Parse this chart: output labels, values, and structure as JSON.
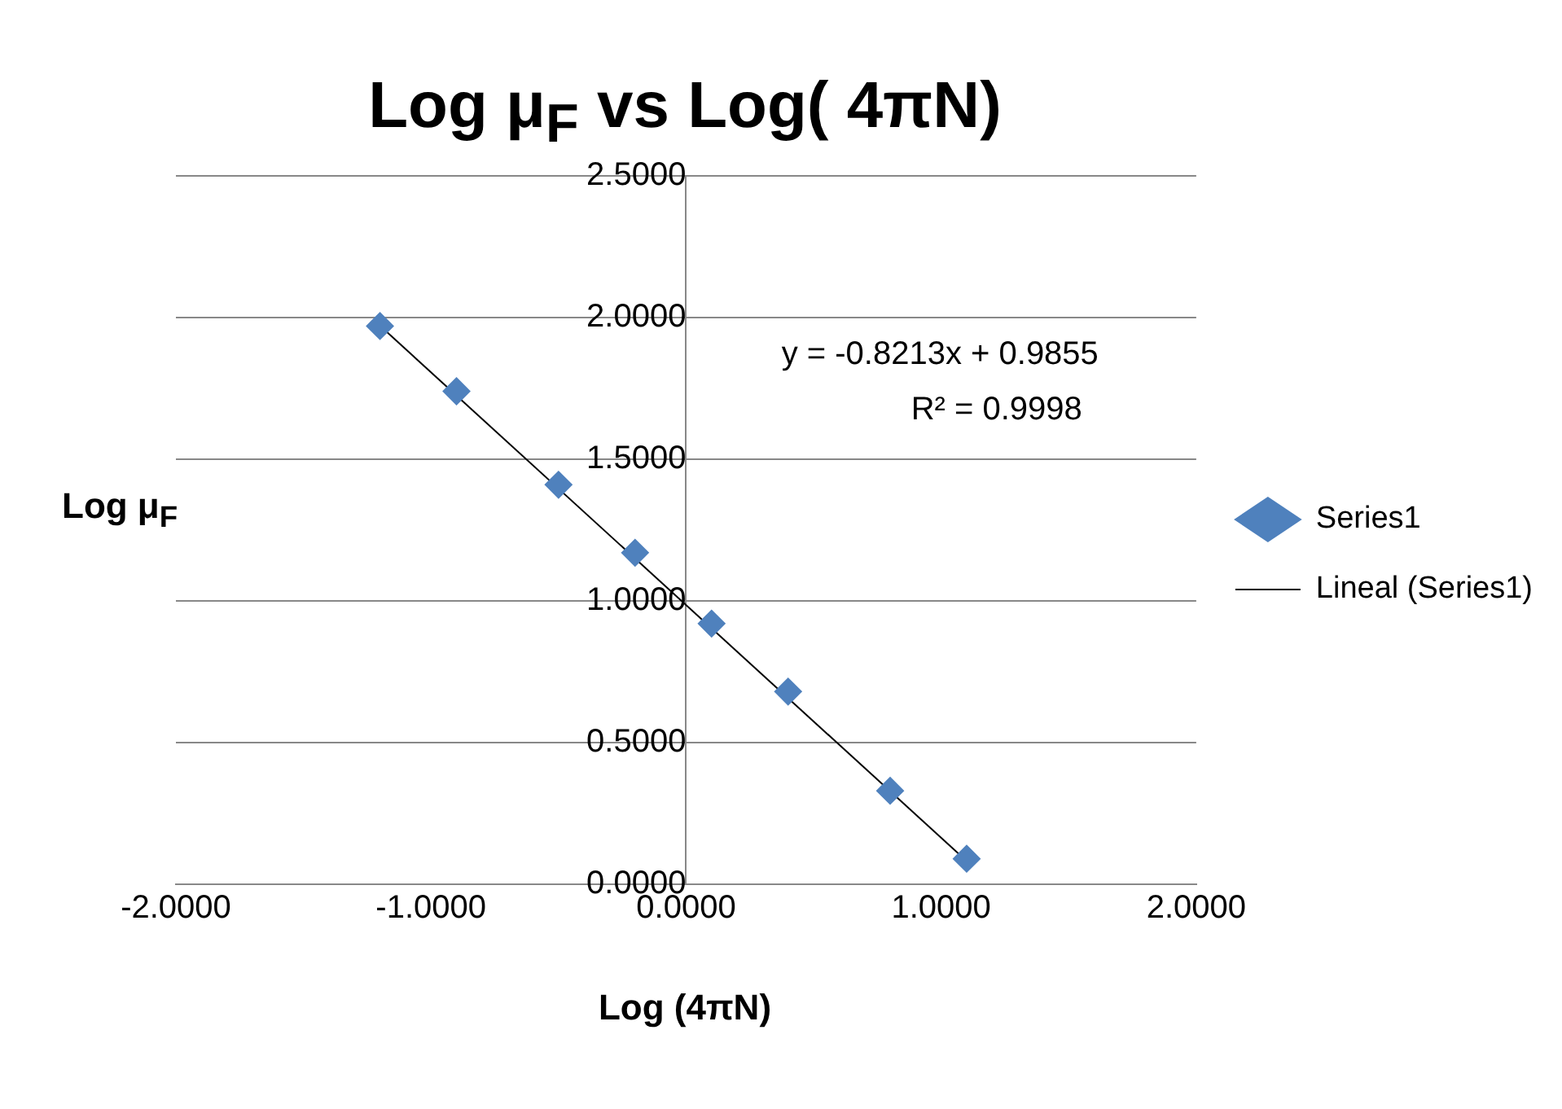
{
  "chart_data": {
    "type": "scatter",
    "title": "Log μ$_{F}$ vs Log( 4πN)",
    "xlabel": "Log (4πN)",
    "ylabel": "Log μ$_{F}$",
    "x": [
      -1.2,
      -0.9,
      -0.5,
      -0.2,
      0.1,
      0.4,
      0.8,
      1.1
    ],
    "series": [
      {
        "name": "Series1",
        "color": "#4f81bd",
        "type": "scatter",
        "marker": "diamond",
        "values": [
          1.97,
          1.74,
          1.41,
          1.17,
          0.92,
          0.68,
          0.33,
          0.09
        ]
      },
      {
        "name": "Lineal (Series1)",
        "color": "#000000",
        "type": "line",
        "marker": "none",
        "line_style": "solid",
        "x": [
          -1.2,
          1.1
        ],
        "values": [
          1.971,
          0.082
        ]
      }
    ],
    "annotations": [
      "y = -0.8213x + 0.9855",
      "R² = 0.9998"
    ],
    "xlim": [
      -2,
      2
    ],
    "xticks": [
      {
        "value": -2,
        "label": "-2.0000"
      },
      {
        "value": -1,
        "label": "-1.0000"
      },
      {
        "value": 0,
        "label": "0.0000"
      },
      {
        "value": 1,
        "label": "1.0000"
      },
      {
        "value": 2,
        "label": "2.0000"
      }
    ],
    "ylim": [
      0,
      2.5
    ],
    "yticks": [
      {
        "value": 0,
        "label": "0.0000"
      },
      {
        "value": 0.5,
        "label": "0.5000"
      },
      {
        "value": 1,
        "label": "1.0000"
      },
      {
        "value": 1.5,
        "label": "1.5000"
      },
      {
        "value": 2,
        "label": "2.0000"
      },
      {
        "value": 2.5,
        "label": "2.5000"
      }
    ],
    "grid": "y",
    "legend": "right"
  }
}
